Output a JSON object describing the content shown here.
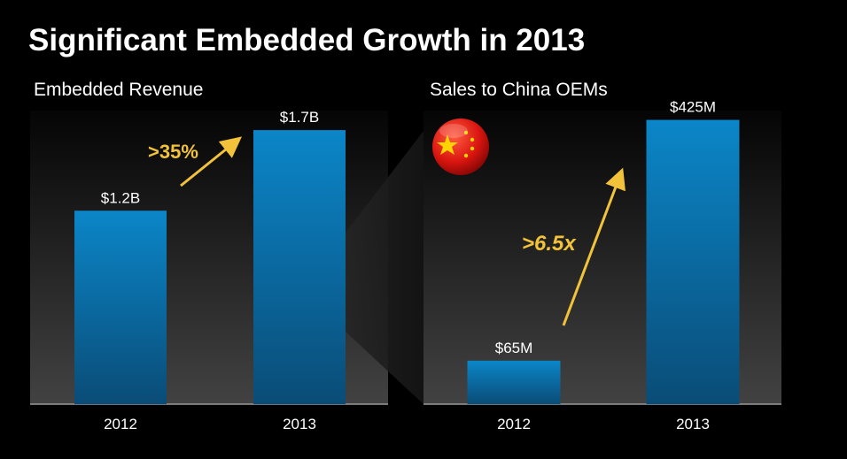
{
  "slide": {
    "title": "Significant Embedded Growth in 2013"
  },
  "colors": {
    "background": "#000000",
    "bar": "#0b7fbf",
    "bar_dark": "#0a4e7a",
    "arrow": "#f2c23a",
    "text": "#ffffff"
  },
  "chart_data": [
    {
      "type": "bar",
      "title": "Embedded Revenue",
      "categories": [
        "2012",
        "2013"
      ],
      "values": [
        1.2,
        1.7
      ],
      "data_labels": [
        "$1.2B",
        "$1.7B"
      ],
      "unit": "B",
      "annotation": ">35%",
      "ylim": [
        0,
        1.75
      ],
      "grid": false
    },
    {
      "type": "bar",
      "title": "Sales to China OEMs",
      "categories": [
        "2012",
        "2013"
      ],
      "values": [
        65,
        425
      ],
      "data_labels": [
        "$65M",
        "$425M"
      ],
      "unit": "M",
      "annotation": ">6.5x",
      "ylim": [
        0,
        435
      ],
      "grid": false
    }
  ],
  "icons": {
    "flag": "china-flag-icon"
  }
}
